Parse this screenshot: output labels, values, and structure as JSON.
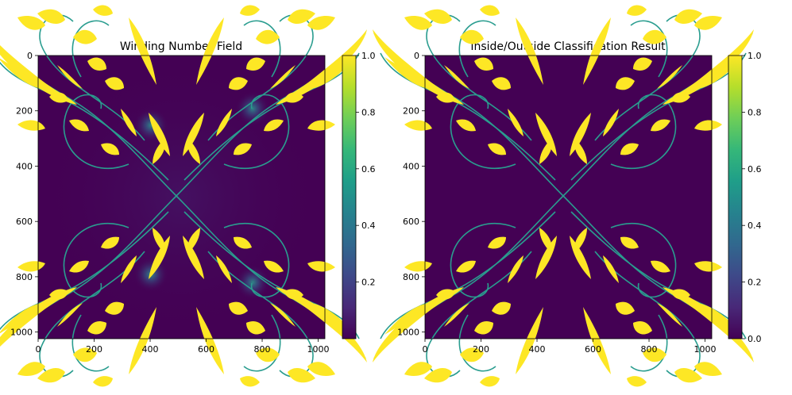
{
  "chart_data": [
    {
      "type": "heatmap",
      "title": "Winding Number Field",
      "xlabel": "",
      "ylabel": "",
      "xlim": [
        0,
        1024
      ],
      "ylim": [
        1024,
        0
      ],
      "x_ticks": [
        0,
        200,
        400,
        600,
        800,
        1000
      ],
      "y_ticks": [
        0,
        200,
        400,
        600,
        800,
        1000
      ],
      "colormap": "viridis",
      "colorbar": {
        "range": [
          0,
          1.0
        ],
        "ticks": [
          "0.2",
          "0.4",
          "0.6",
          "0.8",
          "1.0"
        ]
      },
      "content": "Symmetric ornamental floral scroll motif (four quadrant flourishes meeting near x=490, y=510). Shape interiors ≈ 1.0 (yellow), background ≈ 0 (dark purple) with soft glow (≈0.2–0.5) around shape boundaries and near (400,260), (760,200), (400,780), (760,820)."
    },
    {
      "type": "heatmap",
      "title": "Inside/Outside Classification Result",
      "xlabel": "",
      "ylabel": "",
      "xlim": [
        0,
        1024
      ],
      "ylim": [
        1024,
        0
      ],
      "x_ticks": [
        0,
        200,
        400,
        600,
        800,
        1000
      ],
      "y_ticks": [
        0,
        200,
        400,
        600,
        800,
        1000
      ],
      "colormap": "viridis",
      "colorbar": {
        "range": [
          0,
          1.0
        ],
        "ticks": [
          "0.0",
          "0.2",
          "0.4",
          "0.6",
          "0.8",
          "1.0"
        ]
      },
      "content": "Binary mask of the same ornamental motif: inside = 1.0 (yellow), outside = 0.0 (dark purple), thin teal outline strokes."
    }
  ],
  "colors": {
    "background_low": "#440154",
    "field_glow": "#3b2a7a",
    "shape_fill": "#fde725",
    "stroke_teal": "#2a9d8f",
    "colorbar_stops": [
      "#440154",
      "#482878",
      "#3e4989",
      "#31688e",
      "#26828e",
      "#1f9e89",
      "#35b779",
      "#6ece58",
      "#b5de2b",
      "#fde725"
    ]
  }
}
